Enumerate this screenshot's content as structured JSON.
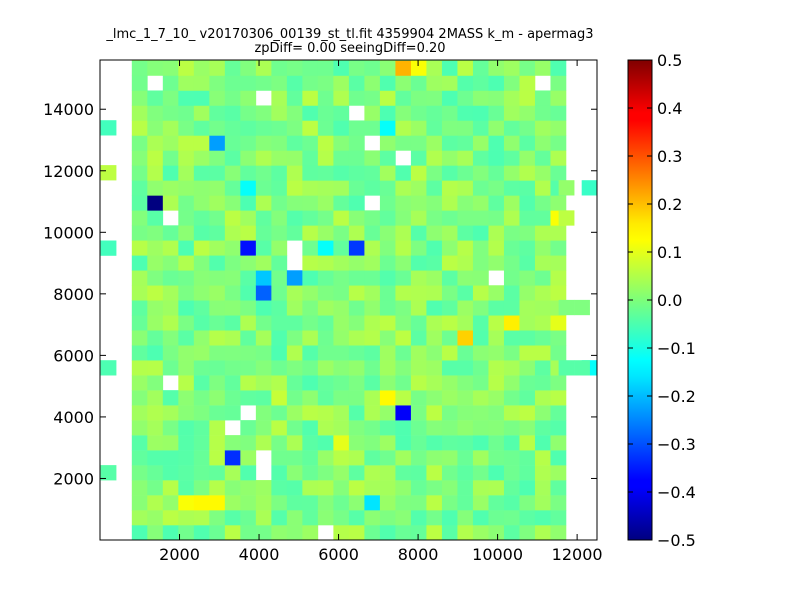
{
  "chart_data": {
    "type": "heatmap",
    "title": "_lmc_1_7_10_ v20170306_00139_st_tl.fit 4359904 2MASS k_m - apermag3",
    "subtitle": "zpDiff= 0.00 seeingDiff=0.20",
    "xlabel": "",
    "ylabel": "",
    "xlim": [
      0,
      12500
    ],
    "ylim": [
      0,
      15600
    ],
    "x_ticks": [
      "2000",
      "4000",
      "6000",
      "8000",
      "10000",
      "12000"
    ],
    "y_ticks": [
      "2000",
      "4000",
      "6000",
      "8000",
      "10000",
      "12000",
      "14000"
    ],
    "colormap": "jet",
    "color_range": [
      -0.5,
      0.5
    ],
    "colorbar_ticks": [
      "0.5",
      "0.4",
      "0.3",
      "0.2",
      "0.1",
      "0.0",
      "−0.1",
      "−0.2",
      "−0.3",
      "−0.4",
      "−0.5"
    ],
    "grid": false,
    "cell_size": [
      390,
      487
    ],
    "grid_origin": [
      800,
      0
    ],
    "cells": [
      {
        "x": 1975,
        "y": 1220,
        "value": 0.12
      },
      {
        "x": 2365,
        "y": 975,
        "value": 0.13
      },
      {
        "x": 2755,
        "y": 975,
        "value": 0.13
      },
      {
        "x": 1190,
        "y": 10960,
        "value": -0.5
      },
      {
        "x": 2755,
        "y": 12910,
        "value": -0.22
      },
      {
        "x": 3145,
        "y": 2680,
        "value": -0.33
      },
      {
        "x": 3535,
        "y": 9490,
        "value": -0.36
      },
      {
        "x": 3925,
        "y": 8030,
        "value": -0.28
      },
      {
        "x": 3925,
        "y": 8520,
        "value": -0.18
      },
      {
        "x": 4705,
        "y": 8520,
        "value": -0.22
      },
      {
        "x": 6265,
        "y": 9490,
        "value": -0.32
      },
      {
        "x": 7435,
        "y": 4140,
        "value": -0.38
      },
      {
        "x": 5485,
        "y": 9490,
        "value": -0.12
      },
      {
        "x": 6655,
        "y": 1220,
        "value": -0.15
      },
      {
        "x": 7045,
        "y": 13400,
        "value": -0.12
      },
      {
        "x": 3535,
        "y": 11450,
        "value": -0.12
      },
      {
        "x": 7435,
        "y": 15350,
        "value": 0.2
      },
      {
        "x": 7825,
        "y": 15350,
        "value": 0.12
      },
      {
        "x": 9000,
        "y": 6580,
        "value": 0.17
      },
      {
        "x": 10170,
        "y": 7070,
        "value": 0.14
      },
      {
        "x": 11340,
        "y": 7070,
        "value": 0.1
      },
      {
        "x": 11340,
        "y": 10470,
        "value": 0.12
      },
      {
        "x": 7045,
        "y": 4630,
        "value": 0.13
      },
      {
        "x": 5875,
        "y": 3170,
        "value": 0.1
      },
      {
        "x": 4315,
        "y": 4630,
        "value": 0.07
      },
      {
        "x": 210,
        "y": 2190,
        "value": -0.04
      },
      {
        "x": 210,
        "y": 5600,
        "value": -0.05
      },
      {
        "x": 210,
        "y": 9490,
        "value": -0.06
      },
      {
        "x": 210,
        "y": 11940,
        "value": 0.06
      },
      {
        "x": 210,
        "y": 13400,
        "value": -0.06
      },
      {
        "x": 12310,
        "y": 11450,
        "value": -0.07
      },
      {
        "x": 12310,
        "y": 5600,
        "value": -0.12
      },
      {
        "x": 11730,
        "y": 10470,
        "value": 0.06
      },
      {
        "x": 11730,
        "y": 7560,
        "value": 0.0
      },
      {
        "x": 12120,
        "y": 7560,
        "value": 0.0
      },
      {
        "x": 11730,
        "y": 5600,
        "value": -0.04
      },
      {
        "x": 12120,
        "y": 5600,
        "value": -0.04
      },
      {
        "x": 11730,
        "y": 11450,
        "value": 0.02
      }
    ],
    "empty_cells": [
      {
        "x": 1190,
        "y": 14860
      },
      {
        "x": 3925,
        "y": 14370
      },
      {
        "x": 6265,
        "y": 13890
      },
      {
        "x": 6655,
        "y": 12910
      },
      {
        "x": 7435,
        "y": 12420
      },
      {
        "x": 1580,
        "y": 10470
      },
      {
        "x": 6655,
        "y": 10960
      },
      {
        "x": 4705,
        "y": 9490
      },
      {
        "x": 4705,
        "y": 9000
      },
      {
        "x": 9775,
        "y": 8520
      },
      {
        "x": 10945,
        "y": 14860
      },
      {
        "x": 1580,
        "y": 5110
      },
      {
        "x": 3535,
        "y": 4140
      },
      {
        "x": 3145,
        "y": 3660
      },
      {
        "x": 3925,
        "y": 2680
      },
      {
        "x": 3925,
        "y": 2190
      },
      {
        "x": 5485,
        "y": 240
      }
    ]
  }
}
